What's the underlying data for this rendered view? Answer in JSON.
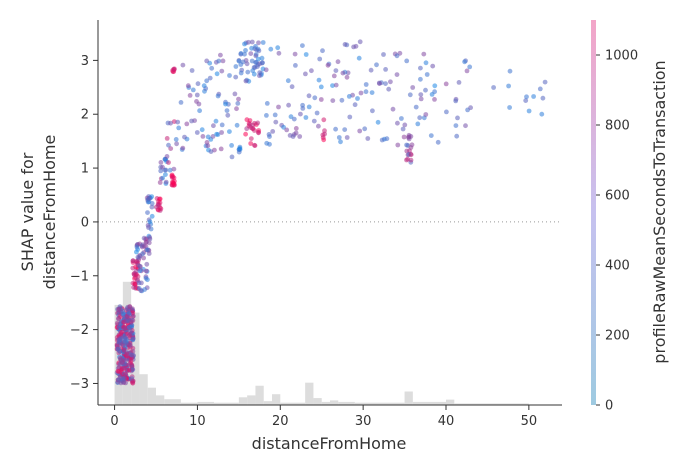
{
  "chart_data": {
    "type": "scatter",
    "title": "",
    "xlabel": "distanceFromHome",
    "ylabel_lines": [
      "SHAP value for",
      "distanceFromHome"
    ],
    "xlim": [
      -2,
      54
    ],
    "ylim": [
      -3.4,
      3.75
    ],
    "xticks": [
      0,
      10,
      20,
      30,
      40,
      50
    ],
    "yticks": [
      -3,
      -2,
      -1,
      0,
      1,
      2,
      3
    ],
    "zero_line": true,
    "grid": false,
    "colorbar": {
      "label": "profileRawMeanSecondsToTransaction",
      "range": [
        0,
        1100
      ],
      "ticks": [
        0,
        200,
        400,
        600,
        800,
        1000
      ],
      "colors": [
        "#9ecae1",
        "#c6c1ef",
        "#f3a5c8"
      ]
    },
    "point_color_scale": [
      "#1e88e5",
      "#ff0052"
    ],
    "histogram": {
      "color": "#dddddd",
      "bins": [
        {
          "x0": 0,
          "x1": 1,
          "h": 0.26
        },
        {
          "x0": 1,
          "x1": 2,
          "h": 0.32
        },
        {
          "x0": 2,
          "x1": 3,
          "h": 0.24
        },
        {
          "x0": 3,
          "x1": 4,
          "h": 0.08
        },
        {
          "x0": 4,
          "x1": 5,
          "h": 0.045
        },
        {
          "x0": 5,
          "x1": 6,
          "h": 0.025
        },
        {
          "x0": 6,
          "x1": 8,
          "h": 0.015
        },
        {
          "x0": 8,
          "x1": 10,
          "h": 0.006
        },
        {
          "x0": 10,
          "x1": 12,
          "h": 0.008
        },
        {
          "x0": 12,
          "x1": 15,
          "h": 0.006
        },
        {
          "x0": 15,
          "x1": 16,
          "h": 0.02
        },
        {
          "x0": 16,
          "x1": 17,
          "h": 0.025
        },
        {
          "x0": 17,
          "x1": 18,
          "h": 0.05
        },
        {
          "x0": 18,
          "x1": 19,
          "h": 0.01
        },
        {
          "x0": 19,
          "x1": 20,
          "h": 0.028
        },
        {
          "x0": 20,
          "x1": 23,
          "h": 0.006
        },
        {
          "x0": 23,
          "x1": 24,
          "h": 0.058
        },
        {
          "x0": 24,
          "x1": 25,
          "h": 0.018
        },
        {
          "x0": 25,
          "x1": 26,
          "h": 0.008
        },
        {
          "x0": 26,
          "x1": 27,
          "h": 0.012
        },
        {
          "x0": 27,
          "x1": 29,
          "h": 0.008
        },
        {
          "x0": 29,
          "x1": 35,
          "h": 0.006
        },
        {
          "x0": 35,
          "x1": 36,
          "h": 0.035
        },
        {
          "x0": 36,
          "x1": 40,
          "h": 0.008
        },
        {
          "x0": 40,
          "x1": 41,
          "h": 0.014
        },
        {
          "x0": 41,
          "x1": 50,
          "h": 0.004
        }
      ]
    },
    "clusters": [
      {
        "x": [
          0.3,
          2.3
        ],
        "y": [
          -3.0,
          -1.55
        ],
        "n": 320,
        "c": [
          0.0,
          1.0
        ]
      },
      {
        "x": [
          2.2,
          2.9
        ],
        "y": [
          -1.25,
          -0.7
        ],
        "n": 30,
        "c": [
          0.5,
          1.0
        ]
      },
      {
        "x": [
          2.6,
          4.0
        ],
        "y": [
          -1.3,
          -0.3
        ],
        "n": 45,
        "c": [
          0.0,
          0.6
        ]
      },
      {
        "x": [
          3.9,
          4.6
        ],
        "y": [
          -0.6,
          0.5
        ],
        "n": 28,
        "c": [
          0.0,
          0.5
        ]
      },
      {
        "x": [
          5.0,
          5.6
        ],
        "y": [
          0.2,
          0.45
        ],
        "n": 14,
        "c": [
          0.6,
          1.0
        ]
      },
      {
        "x": [
          5.5,
          6.3
        ],
        "y": [
          0.7,
          1.4
        ],
        "n": 16,
        "c": [
          0.0,
          0.6
        ]
      },
      {
        "x": [
          6.8,
          7.3
        ],
        "y": [
          0.65,
          0.9
        ],
        "n": 14,
        "c": [
          0.85,
          1.0
        ]
      },
      {
        "x": [
          6.3,
          7.8
        ],
        "y": [
          0.95,
          1.9
        ],
        "n": 14,
        "c": [
          0.0,
          0.8
        ]
      },
      {
        "x": [
          7.0,
          7.3
        ],
        "y": [
          2.7,
          2.85
        ],
        "n": 6,
        "c": [
          0.7,
          0.9
        ]
      },
      {
        "x": [
          8.0,
          15.0
        ],
        "y": [
          1.2,
          3.1
        ],
        "n": 70,
        "c": [
          0.0,
          0.5
        ]
      },
      {
        "x": [
          14.8,
          15.4
        ],
        "y": [
          1.25,
          1.45
        ],
        "n": 6,
        "c": [
          0.0,
          0.3
        ]
      },
      {
        "x": [
          15.8,
          17.8
        ],
        "y": [
          1.4,
          1.9
        ],
        "n": 22,
        "c": [
          0.6,
          1.0
        ]
      },
      {
        "x": [
          15.0,
          18.0
        ],
        "y": [
          2.6,
          3.35
        ],
        "n": 50,
        "c": [
          0.0,
          0.4
        ]
      },
      {
        "x": [
          18.0,
          35.0
        ],
        "y": [
          1.4,
          3.4
        ],
        "n": 110,
        "c": [
          0.0,
          0.5
        ]
      },
      {
        "x": [
          25.0,
          25.4
        ],
        "y": [
          1.5,
          1.9
        ],
        "n": 6,
        "c": [
          0.7,
          1.0
        ]
      },
      {
        "x": [
          35.2,
          35.8
        ],
        "y": [
          1.1,
          1.65
        ],
        "n": 18,
        "c": [
          0.2,
          0.8
        ]
      },
      {
        "x": [
          35.0,
          43.0
        ],
        "y": [
          1.4,
          3.2
        ],
        "n": 40,
        "c": [
          0.0,
          0.5
        ]
      },
      {
        "x": [
          45.0,
          52.0
        ],
        "y": [
          2.0,
          3.0
        ],
        "n": 12,
        "c": [
          0.0,
          0.3
        ]
      }
    ]
  }
}
